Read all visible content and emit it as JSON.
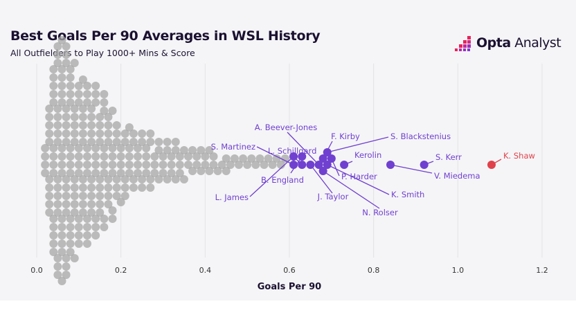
{
  "header": {
    "title": "Best Goals Per 90 Averages in WSL History",
    "subtitle": "All Outfielders to Play 1000+ Mins & Score"
  },
  "logo": {
    "brand": "Opta",
    "product": "Analyst"
  },
  "colors": {
    "background": "#f5f5f7",
    "others": "#a6a6a6",
    "highlight": "#7040d0",
    "leader": "#e0424b",
    "text": "#1b1131"
  },
  "chart_data": {
    "type": "scatter",
    "subtype": "beeswarm",
    "title": "Best Goals Per 90 Averages in WSL History",
    "xlabel": "Goals Per 90",
    "ylabel": "",
    "xlim": [
      0,
      1.2
    ],
    "xticks": [
      "0.0",
      "0.2",
      "0.4",
      "0.6",
      "0.8",
      "1.0",
      "1.2"
    ],
    "grid": "vertical",
    "highlighted": [
      {
        "name": "K. Shaw",
        "value": 1.08,
        "color": "#e0424b"
      },
      {
        "name": "S. Kerr",
        "value": 0.92
      },
      {
        "name": "V. Miedema",
        "value": 0.84
      },
      {
        "name": "Kerolin",
        "value": 0.73
      },
      {
        "name": "P. Harder",
        "value": 0.7
      },
      {
        "name": "K. Smith",
        "value": 0.69
      },
      {
        "name": "S. Blackstenius",
        "value": 0.69
      },
      {
        "name": "F. Kirby",
        "value": 0.68
      },
      {
        "name": "N. Rolser",
        "value": 0.68
      },
      {
        "name": "A. Beever-Jones",
        "value": 0.67
      },
      {
        "name": "J. Taylor",
        "value": 0.65
      },
      {
        "name": "L. Schillgard",
        "value": 0.63
      },
      {
        "name": "B. England",
        "value": 0.63
      },
      {
        "name": "S. Martinez",
        "value": 0.61
      },
      {
        "name": "L. James",
        "value": 0.61
      }
    ],
    "others": [
      0.02,
      0.02,
      0.02,
      0.02,
      0.03,
      0.03,
      0.03,
      0.03,
      0.03,
      0.03,
      0.03,
      0.03,
      0.03,
      0.03,
      0.04,
      0.04,
      0.04,
      0.04,
      0.04,
      0.04,
      0.04,
      0.04,
      0.04,
      0.04,
      0.04,
      0.04,
      0.04,
      0.04,
      0.05,
      0.05,
      0.05,
      0.05,
      0.05,
      0.05,
      0.05,
      0.05,
      0.05,
      0.05,
      0.05,
      0.05,
      0.05,
      0.05,
      0.05,
      0.05,
      0.06,
      0.06,
      0.06,
      0.06,
      0.06,
      0.06,
      0.06,
      0.06,
      0.06,
      0.06,
      0.06,
      0.06,
      0.06,
      0.06,
      0.06,
      0.06,
      0.07,
      0.07,
      0.07,
      0.07,
      0.07,
      0.07,
      0.07,
      0.07,
      0.07,
      0.07,
      0.07,
      0.07,
      0.07,
      0.07,
      0.07,
      0.07,
      0.08,
      0.08,
      0.08,
      0.08,
      0.08,
      0.08,
      0.08,
      0.08,
      0.08,
      0.08,
      0.08,
      0.08,
      0.08,
      0.08,
      0.09,
      0.09,
      0.09,
      0.09,
      0.09,
      0.09,
      0.09,
      0.09,
      0.09,
      0.09,
      0.09,
      0.09,
      0.1,
      0.1,
      0.1,
      0.1,
      0.1,
      0.1,
      0.1,
      0.1,
      0.1,
      0.1,
      0.1,
      0.11,
      0.11,
      0.11,
      0.11,
      0.11,
      0.11,
      0.11,
      0.11,
      0.11,
      0.11,
      0.11,
      0.12,
      0.12,
      0.12,
      0.12,
      0.12,
      0.12,
      0.12,
      0.12,
      0.12,
      0.12,
      0.12,
      0.13,
      0.13,
      0.13,
      0.13,
      0.13,
      0.13,
      0.13,
      0.13,
      0.13,
      0.13,
      0.14,
      0.14,
      0.14,
      0.14,
      0.14,
      0.14,
      0.14,
      0.14,
      0.14,
      0.14,
      0.15,
      0.15,
      0.15,
      0.15,
      0.15,
      0.15,
      0.15,
      0.15,
      0.15,
      0.16,
      0.16,
      0.16,
      0.16,
      0.16,
      0.16,
      0.16,
      0.16,
      0.16,
      0.17,
      0.17,
      0.17,
      0.17,
      0.17,
      0.17,
      0.17,
      0.17,
      0.18,
      0.18,
      0.18,
      0.18,
      0.18,
      0.18,
      0.18,
      0.19,
      0.19,
      0.19,
      0.19,
      0.19,
      0.19,
      0.2,
      0.2,
      0.2,
      0.2,
      0.2,
      0.21,
      0.21,
      0.21,
      0.21,
      0.21,
      0.22,
      0.22,
      0.22,
      0.22,
      0.22,
      0.23,
      0.23,
      0.23,
      0.23,
      0.24,
      0.24,
      0.24,
      0.24,
      0.25,
      0.25,
      0.25,
      0.25,
      0.26,
      0.26,
      0.26,
      0.26,
      0.27,
      0.27,
      0.27,
      0.27,
      0.28,
      0.28,
      0.28,
      0.29,
      0.29,
      0.29,
      0.3,
      0.3,
      0.3,
      0.31,
      0.31,
      0.31,
      0.32,
      0.32,
      0.32,
      0.33,
      0.33,
      0.33,
      0.34,
      0.34,
      0.34,
      0.35,
      0.35,
      0.36,
      0.36,
      0.37,
      0.37,
      0.38,
      0.38,
      0.39,
      0.39,
      0.4,
      0.4,
      0.41,
      0.41,
      0.42,
      0.42,
      0.43,
      0.44,
      0.45,
      0.45,
      0.46,
      0.47,
      0.48,
      0.49,
      0.5,
      0.51,
      0.52,
      0.53,
      0.54,
      0.55,
      0.56,
      0.57,
      0.58,
      0.59
    ]
  }
}
